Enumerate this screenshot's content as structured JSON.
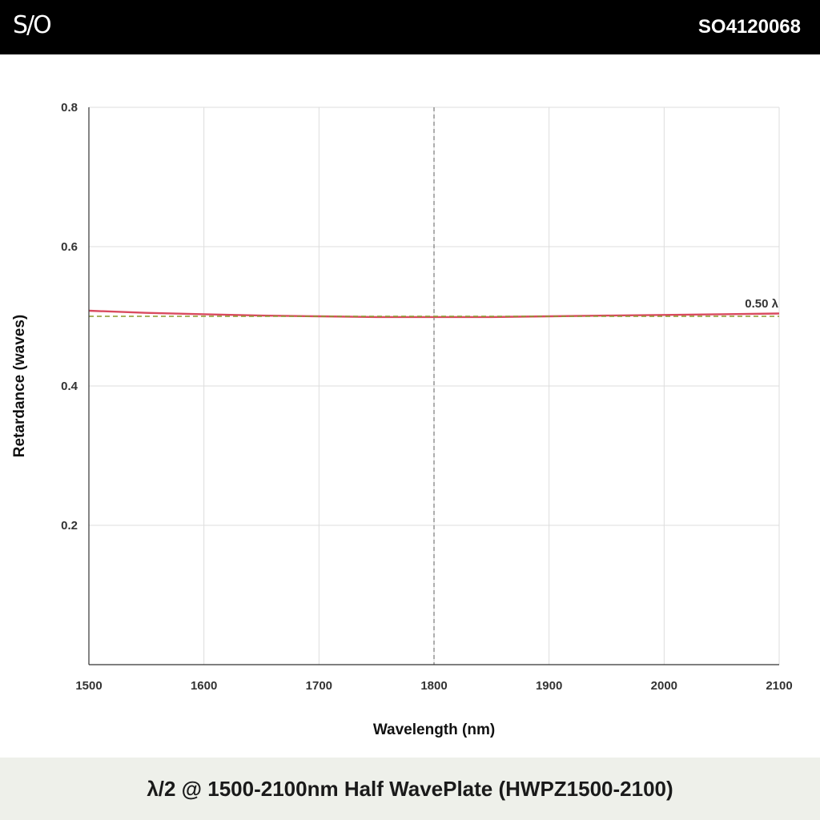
{
  "header": {
    "logo": "S/O",
    "part_number": "SO4120068"
  },
  "footer": {
    "title": "λ/2 @ 1500-2100nm Half WavePlate (HWPZ1500-2100)"
  },
  "chart_data": {
    "type": "line",
    "xlabel": "Wavelength (nm)",
    "ylabel": "Retardance (waves)",
    "xlim": [
      1500,
      2100
    ],
    "ylim": [
      0,
      0.8
    ],
    "x_ticks": [
      1500,
      1600,
      1700,
      1800,
      1900,
      2000,
      2100
    ],
    "y_ticks": [
      0.2,
      0.4,
      0.6,
      0.8
    ],
    "grid": true,
    "series": [
      {
        "color": "#d94b5f",
        "style": "solid",
        "x": [
          1500,
          1550,
          1600,
          1650,
          1700,
          1750,
          1800,
          1850,
          1900,
          1950,
          2000,
          2050,
          2100
        ],
        "y": [
          0.508,
          0.505,
          0.503,
          0.501,
          0.5,
          0.499,
          0.499,
          0.499,
          0.5,
          0.501,
          0.502,
          0.503,
          0.504
        ]
      },
      {
        "color": "#8a9a2a",
        "style": "dashed",
        "x": [
          1500,
          2100
        ],
        "y": [
          0.5,
          0.5
        ]
      }
    ],
    "reference_vline": {
      "x": 1800,
      "color": "#777777",
      "style": "dashed"
    },
    "annotations": [
      {
        "text": "0.50 λ",
        "x": 2100,
        "y": 0.5
      }
    ]
  }
}
